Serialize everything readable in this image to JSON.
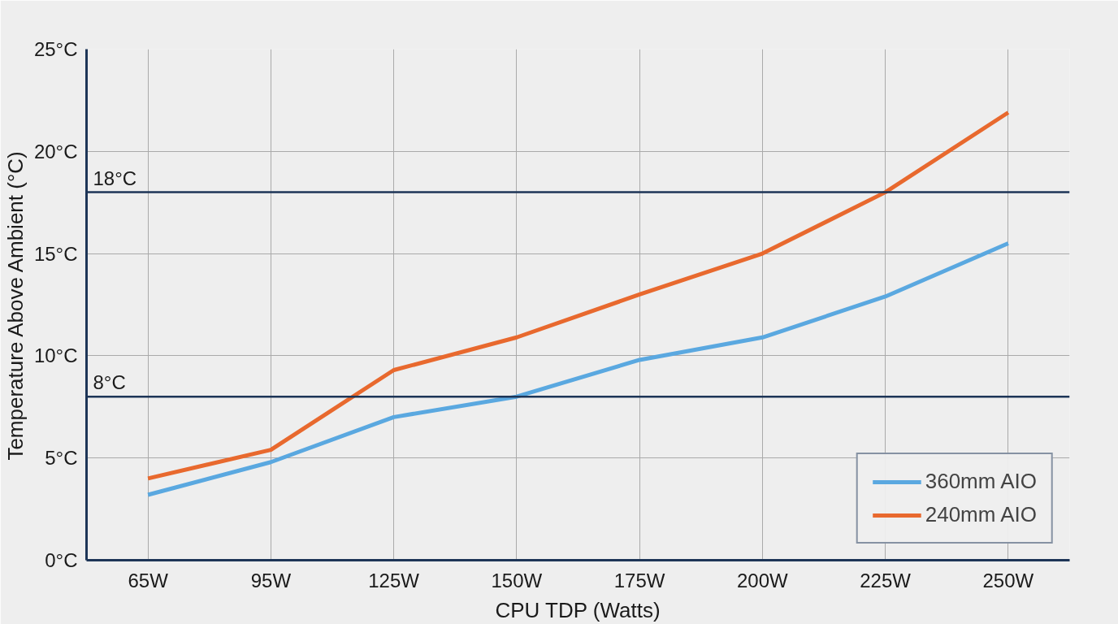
{
  "chart_data": {
    "type": "line",
    "xlabel": "CPU TDP (Watts)",
    "ylabel": "Temperature Above Ambient (°C)",
    "categories": [
      "65W",
      "95W",
      "125W",
      "150W",
      "175W",
      "200W",
      "225W",
      "250W"
    ],
    "series": [
      {
        "name": "360mm AIO",
        "color": "#5aa8e0",
        "values": [
          3.2,
          4.8,
          7.0,
          8.0,
          9.8,
          10.9,
          12.9,
          15.5
        ]
      },
      {
        "name": "240mm AIO",
        "color": "#e8692e",
        "values": [
          4.0,
          5.4,
          9.3,
          10.9,
          13.0,
          15.0,
          18.0,
          21.9
        ]
      }
    ],
    "ylim": [
      0,
      25
    ],
    "yticks": [
      {
        "value": 0,
        "label": "0°C"
      },
      {
        "value": 5,
        "label": "5°C"
      },
      {
        "value": 10,
        "label": "10°C"
      },
      {
        "value": 15,
        "label": "15°C"
      },
      {
        "value": 20,
        "label": "20°C"
      },
      {
        "value": 25,
        "label": "25°C"
      }
    ],
    "ref_lines": [
      {
        "axis": "y",
        "value": 18,
        "label": "18°C",
        "color": "#1d3557"
      },
      {
        "axis": "y",
        "value": 8,
        "label": "8°C",
        "color": "#1d3557"
      }
    ],
    "grid": true,
    "legend": "bottom right",
    "line_style": "solid"
  }
}
